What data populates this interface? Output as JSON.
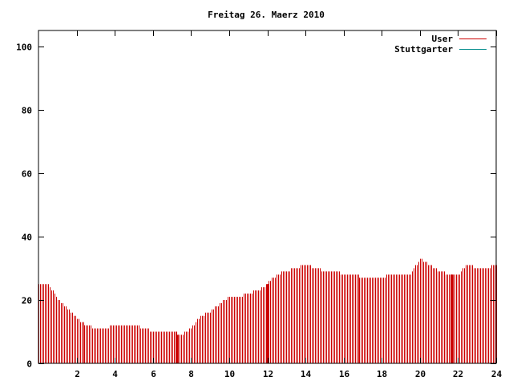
{
  "chart_data": {
    "type": "bar",
    "title": "Freitag 26. Maerz 2010",
    "xlabel": "",
    "ylabel": "",
    "xlim": [
      0,
      24
    ],
    "ylim": [
      0,
      105
    ],
    "x_ticks": [
      "2",
      "4",
      "6",
      "8",
      "10",
      "12",
      "14",
      "16",
      "18",
      "20",
      "22",
      "24"
    ],
    "y_ticks": [
      "0",
      "20",
      "40",
      "60",
      "80",
      "100"
    ],
    "grid": false,
    "legend": "top-right",
    "series": [
      {
        "name": "User",
        "color": "#cc0000",
        "points": [
          [
            0.0,
            25
          ],
          [
            0.5,
            25
          ],
          [
            1.0,
            20
          ],
          [
            1.5,
            17
          ],
          [
            2.0,
            14
          ],
          [
            2.5,
            12
          ],
          [
            3.0,
            11
          ],
          [
            3.5,
            11
          ],
          [
            4.0,
            12
          ],
          [
            4.5,
            12
          ],
          [
            5.0,
            12
          ],
          [
            5.5,
            11
          ],
          [
            6.0,
            10
          ],
          [
            6.5,
            10
          ],
          [
            7.0,
            10
          ],
          [
            7.5,
            9
          ],
          [
            8.0,
            11
          ],
          [
            8.5,
            15
          ],
          [
            9.0,
            16
          ],
          [
            9.5,
            19
          ],
          [
            10.0,
            21
          ],
          [
            10.5,
            21
          ],
          [
            11.0,
            22
          ],
          [
            11.5,
            23
          ],
          [
            12.0,
            25
          ],
          [
            12.5,
            28
          ],
          [
            13.0,
            29
          ],
          [
            13.5,
            30
          ],
          [
            14.0,
            31
          ],
          [
            14.5,
            30
          ],
          [
            15.0,
            29
          ],
          [
            15.5,
            29
          ],
          [
            16.0,
            28
          ],
          [
            16.5,
            28
          ],
          [
            17.0,
            27
          ],
          [
            17.5,
            27
          ],
          [
            18.0,
            27
          ],
          [
            18.5,
            28
          ],
          [
            19.0,
            28
          ],
          [
            19.5,
            28
          ],
          [
            20.0,
            33
          ],
          [
            20.5,
            31
          ],
          [
            21.0,
            29
          ],
          [
            21.5,
            28
          ],
          [
            22.0,
            28
          ],
          [
            22.5,
            31
          ],
          [
            23.0,
            30
          ],
          [
            23.5,
            30
          ],
          [
            24.0,
            31
          ]
        ],
        "highlight_x": [
          2.4,
          7.3,
          12.0,
          21.7
        ]
      },
      {
        "name": "Stuttgarter",
        "color": "#008b8b",
        "points": []
      }
    ]
  }
}
